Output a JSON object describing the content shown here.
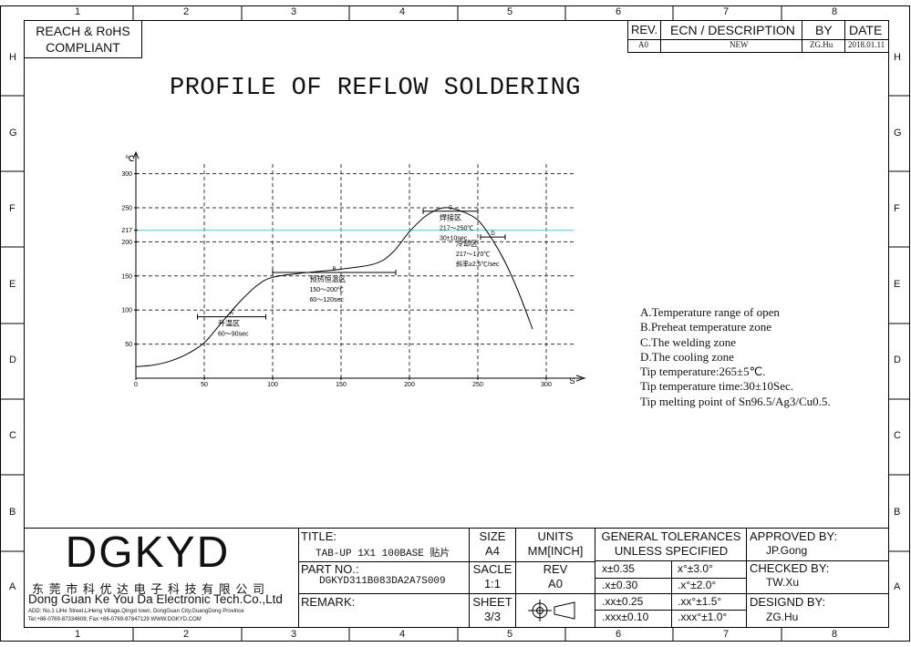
{
  "border": {
    "top_numbers": [
      "1",
      "2",
      "3",
      "4",
      "5",
      "6",
      "7",
      "8"
    ],
    "bottom_numbers": [
      "1",
      "2",
      "3",
      "4",
      "5",
      "6",
      "7",
      "8"
    ],
    "left_letters": [
      "H",
      "G",
      "F",
      "E",
      "D",
      "C",
      "B",
      "A"
    ],
    "right_letters": [
      "H",
      "G",
      "F",
      "E",
      "D",
      "C",
      "B",
      "A"
    ]
  },
  "compliance": {
    "line1": "REACH & RoHS",
    "line2": "COMPLIANT"
  },
  "revision": {
    "headers": {
      "rev": "REV.",
      "ecn": "ECN / DESCRIPTION",
      "by": "BY",
      "date": "DATE"
    },
    "row": {
      "rev": "A0",
      "ecn": "NEW",
      "by": "ZG.Hu",
      "date": "2018.01.11"
    }
  },
  "drawing_title": "PROFILE OF REFLOW SOLDERING",
  "chart_data": {
    "type": "line",
    "y_unit": "℃",
    "x_unit": "S",
    "x_ticks": [
      0,
      50,
      100,
      150,
      200,
      250,
      300
    ],
    "y_ticks": [
      50,
      100,
      150,
      200,
      217,
      250,
      300
    ],
    "xlim": [
      0,
      310
    ],
    "ylim": [
      0,
      330
    ],
    "grid": true,
    "melting_line": 217,
    "curve": {
      "x": [
        0,
        12,
        25,
        38,
        50,
        62,
        75,
        88,
        100,
        125,
        150,
        175,
        188,
        200,
        212,
        225,
        238,
        250,
        260,
        270,
        280,
        290
      ],
      "y": [
        17,
        19,
        25,
        36,
        52,
        80,
        110,
        135,
        148,
        155,
        160,
        168,
        185,
        215,
        238,
        250,
        245,
        232,
        205,
        170,
        125,
        72
      ]
    },
    "zones": [
      {
        "marker": "A",
        "name": "升温区",
        "lines": [
          "60～90sec"
        ],
        "x_start": 45,
        "x_end": 95,
        "y": 90
      },
      {
        "marker": "B",
        "name": "预热恒温区",
        "lines": [
          "150～200℃",
          "60～120sec"
        ],
        "x_start": 100,
        "x_end": 190,
        "y": 155
      },
      {
        "marker": "C",
        "name": "焊接区",
        "lines": [
          "217～250℃",
          "30±10sec"
        ],
        "x_start": 210,
        "x_end": 250,
        "y": 245
      },
      {
        "marker": "D",
        "name": "冷却区",
        "lines": [
          "217～170℃",
          "斜率≥2.5℃/sec"
        ],
        "x_start": 252,
        "x_end": 270,
        "y": 207
      }
    ]
  },
  "notes": [
    "A.Temperature range of open",
    "B.Preheat temperature zone",
    "C.The welding zone",
    "D.The cooling zone",
    "Tip temperature:265±5℃.",
    "Tip temperature time:30±10Sec.",
    "Tip melting point of Sn96.5/Ag3/Cu0.5."
  ],
  "title_block": {
    "company_logo": "DGKYD",
    "company_cn": "东 莞 市 科 优 达 电 子 科 技 有 限 公 司",
    "company_en": "Dong Guan Ke You Da Electronic Tech.Co.,Ltd",
    "address": "ADD: No.1 LiHe Street,LiHeng Village,Qingxi town, DongGuan City,GuangDong Province",
    "contact": "Tel:+86-0769-87334608; Fax:+86-0769-87847129  WWW.DGKYD.COM",
    "title_label": "TITLE:",
    "title_value": "TAB-UP 1X1 100BASE 贴片",
    "part_label": "PART NO.:",
    "part_value": "DGKYD311B083DA2A7S009",
    "remark_label": "REMARK:",
    "size_label": "SIZE",
    "size_value": "A4",
    "units_label": "UNITS",
    "units_value": "MM[INCH]",
    "scale_label": "SACLE",
    "scale_value": "1:1",
    "rev_label": "REV",
    "rev_value": "A0",
    "sheet_label": "SHEET",
    "sheet_value": "3/3",
    "tol_header1": "GENERAL TOLERANCES",
    "tol_header2": "UNLESS SPECIFIED",
    "tolerances": [
      [
        "x±0.35",
        "x°±3.0°"
      ],
      [
        ".x±0.30",
        ".x°±2.0°"
      ],
      [
        ".xx±0.25",
        ".xx°±1.5°"
      ],
      [
        ".xxx±0.10",
        ".xxx°±1.0°"
      ]
    ],
    "approved_label": "APPROVED BY:",
    "approved_value": "JP.Gong",
    "checked_label": "CHECKED BY:",
    "checked_value": "TW.Xu",
    "designed_label": "DESIGND BY:",
    "designed_value": "ZG.Hu"
  }
}
